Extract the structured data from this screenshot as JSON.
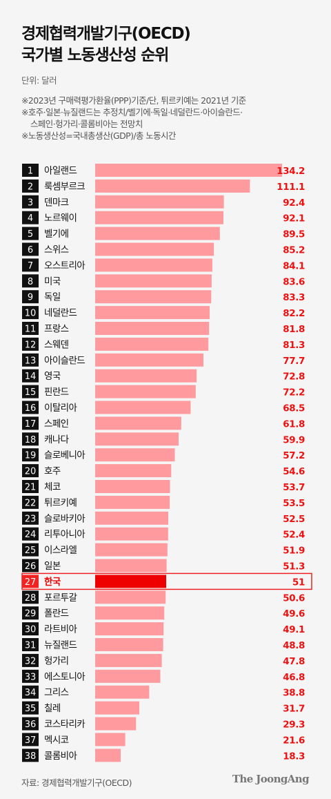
{
  "header": {
    "title_line1": "경제협력개발기구(OECD)",
    "title_line2": "국가별 노동생산성 순위",
    "unit": "단위: 달러",
    "notes": [
      "※2023년 구매력평가환율(PPP)기준/단, 튀르키예는 2021년 기준",
      "※호주·일본·뉴질랜드는 추정치/벨기에·독일·네덜란드·아이슬란드·",
      "스페인·헝가리·콜롬비아는 전망치",
      "※노동생산성=국내총생산(GDP)/총 노동시간"
    ]
  },
  "footer": {
    "source": "자료: 경제협력개발기구(OECD)",
    "logo": "The JoongAng"
  },
  "colors": {
    "bar": "#ff9a9f",
    "highlight_bar": "#ee0000",
    "value_text": "#ee1111",
    "rank_box": "#111111",
    "highlight_rank_box": "#f22222",
    "highlight_border": "#ee2222"
  },
  "chart_data": {
    "type": "bar",
    "orientation": "horizontal",
    "highlight": "한국",
    "categories": [
      "아일랜드",
      "룩셈부르크",
      "덴마크",
      "노르웨이",
      "벨기에",
      "스위스",
      "오스트리아",
      "미국",
      "독일",
      "네덜란드",
      "프랑스",
      "스웨덴",
      "아이슬란드",
      "영국",
      "핀란드",
      "이탈리아",
      "스페인",
      "캐나다",
      "슬로베니아",
      "호주",
      "체코",
      "튀르키예",
      "슬로바키아",
      "리투아니아",
      "이스라엘",
      "일본",
      "한국",
      "포르투갈",
      "폴란드",
      "라트비아",
      "뉴질랜드",
      "헝가리",
      "에스토니아",
      "그리스",
      "칠레",
      "코스타리카",
      "멕시코",
      "콜롬비아"
    ],
    "ranks": [
      1,
      2,
      3,
      4,
      5,
      6,
      7,
      8,
      9,
      10,
      11,
      12,
      13,
      14,
      15,
      16,
      17,
      18,
      19,
      20,
      21,
      22,
      23,
      24,
      25,
      26,
      27,
      28,
      29,
      30,
      31,
      32,
      33,
      34,
      35,
      36,
      37,
      38
    ],
    "values": [
      134.2,
      111.1,
      92.4,
      92.1,
      89.5,
      85.2,
      84.1,
      83.6,
      83.3,
      82.2,
      81.8,
      81.3,
      77.7,
      72.8,
      72.2,
      68.5,
      61.8,
      59.9,
      57.2,
      54.6,
      53.7,
      53.5,
      52.5,
      52.4,
      51.9,
      51.3,
      51,
      50.6,
      49.6,
      49.1,
      48.8,
      47.8,
      46.8,
      38.8,
      31.7,
      29.3,
      21.6,
      18.3
    ],
    "value_labels": [
      "134.2",
      "111.1",
      "92.4",
      "92.1",
      "89.5",
      "85.2",
      "84.1",
      "83.6",
      "83.3",
      "82.2",
      "81.8",
      "81.3",
      "77.7",
      "72.8",
      "72.2",
      "68.5",
      "61.8",
      "59.9",
      "57.2",
      "54.6",
      "53.7",
      "53.5",
      "52.5",
      "52.4",
      "51.9",
      "51.3",
      "51",
      "50.6",
      "49.6",
      "49.1",
      "48.8",
      "47.8",
      "46.8",
      "38.8",
      "31.7",
      "29.3",
      "21.6",
      "18.3"
    ]
  }
}
